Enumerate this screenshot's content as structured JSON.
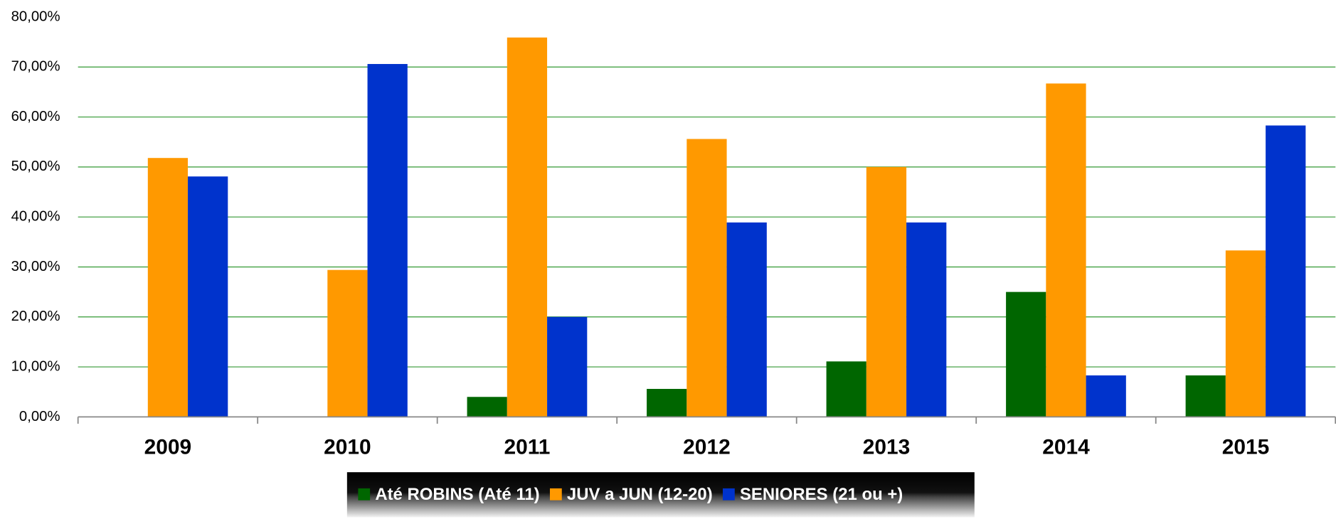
{
  "chart_data": {
    "type": "bar",
    "categories": [
      "2009",
      "2010",
      "2011",
      "2012",
      "2013",
      "2014",
      "2015"
    ],
    "series": [
      {
        "name": "Até ROBINS (Até 11)",
        "color": "#006600",
        "values": [
          0,
          0,
          4.0,
          5.6,
          11.1,
          25.0,
          8.3
        ]
      },
      {
        "name": "JUV a JUN (12-20)",
        "color": "#ff9900",
        "values": [
          51.8,
          29.4,
          75.9,
          55.6,
          50.0,
          66.7,
          33.3
        ]
      },
      {
        "name": "SENIORES (21 ou +)",
        "color": "#0033cc",
        "values": [
          48.1,
          70.6,
          20.0,
          38.9,
          38.9,
          8.3,
          58.3
        ]
      }
    ],
    "ylim": [
      0,
      80
    ],
    "yticks": [
      {
        "value": 0,
        "label": "0,00%"
      },
      {
        "value": 10,
        "label": "10,00%"
      },
      {
        "value": 20,
        "label": "20,00%"
      },
      {
        "value": 30,
        "label": "30,00%"
      },
      {
        "value": 40,
        "label": "40,00%"
      },
      {
        "value": 50,
        "label": "50,00%"
      },
      {
        "value": 60,
        "label": "60,00%"
      },
      {
        "value": 70,
        "label": "70,00%"
      },
      {
        "value": 80,
        "label": "80,00%"
      }
    ],
    "grid": true,
    "legend": "bottom"
  }
}
